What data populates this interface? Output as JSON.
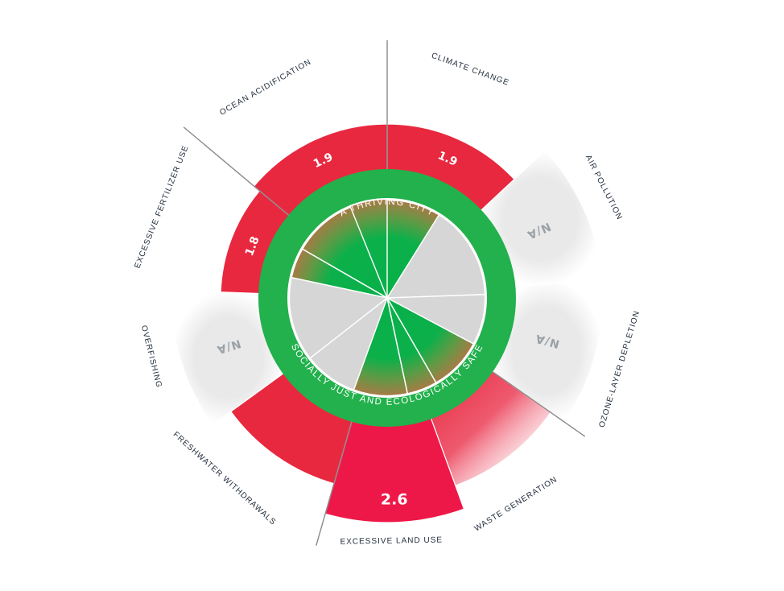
{
  "colors": {
    "overshoot": "#e8283f",
    "overshoot_deep": "#ee1848",
    "shortfall_fill": "#d6d6d6",
    "ring": "#22b14c",
    "core_green": "#07b04a",
    "core_brown": "#a87a45",
    "na_fill": "#f5f5f5",
    "axis_line": "#8a8a8a",
    "label_text": "#1f2b3a",
    "na_text": "#9aa0a6"
  },
  "ring": {
    "top_text": "A THRIVING CITY",
    "bottom_text": "SOCIALLY JUST AND ECOLOGICALLY SAFE"
  },
  "chart_data": {
    "type": "radial-doughnut",
    "unit": "overshoot ratio",
    "segments": [
      {
        "name": "CLIMATE CHANGE",
        "value": 1.9,
        "label": "1.9",
        "status": "overshoot"
      },
      {
        "name": "AIR POLLUTION",
        "value": null,
        "label": "N/A",
        "status": "na"
      },
      {
        "name": "OZONE-LAYER DEPLETION",
        "value": null,
        "label": "N/A",
        "status": "na"
      },
      {
        "name": "WASTE GENERATION",
        "value": null,
        "label": "",
        "status": "overshoot"
      },
      {
        "name": "EXCESSIVE LAND USE",
        "value": 2.6,
        "label": "2.6",
        "status": "overshoot"
      },
      {
        "name": "FRESHWATER WITHDRAWALS",
        "value": null,
        "label": "",
        "status": "overshoot"
      },
      {
        "name": "OVERFISHING",
        "value": null,
        "label": "N/A",
        "status": "na"
      },
      {
        "name": "EXCESSIVE FERTILIZER USE",
        "value": 1.8,
        "label": "1.8",
        "status": "overshoot"
      },
      {
        "name": "OCEAN ACIDIFICATION",
        "value": 1.9,
        "label": "1.9",
        "status": "overshoot"
      }
    ],
    "inner_wedges": [
      {
        "name": "inner-wedge-1",
        "status": "green"
      },
      {
        "name": "inner-wedge-2",
        "status": "grey"
      },
      {
        "name": "inner-wedge-3",
        "status": "grey"
      },
      {
        "name": "inner-wedge-4",
        "status": "green"
      },
      {
        "name": "inner-wedge-5",
        "status": "green"
      },
      {
        "name": "inner-wedge-6",
        "status": "green"
      },
      {
        "name": "inner-wedge-7",
        "status": "grey"
      },
      {
        "name": "inner-wedge-8",
        "status": "grey"
      },
      {
        "name": "inner-wedge-9",
        "status": "green"
      },
      {
        "name": "inner-wedge-10",
        "status": "green"
      }
    ]
  }
}
